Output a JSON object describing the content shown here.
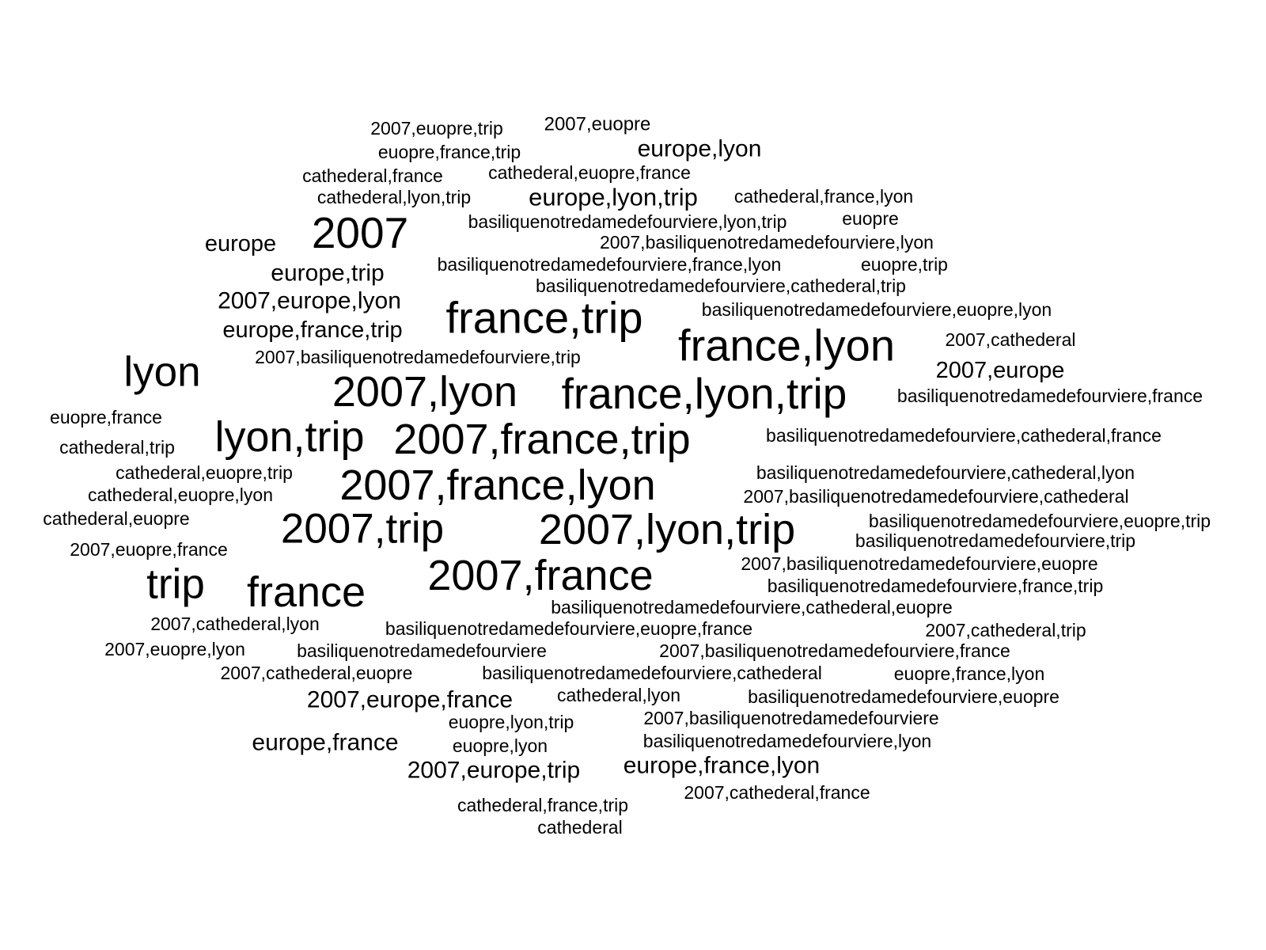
{
  "word_cloud": {
    "text_color": "#000000",
    "background_color": "#ffffff",
    "words": [
      "2007,euopre,trip",
      "2007,euopre",
      "euopre,france,trip",
      "europe,lyon",
      "cathederal,france",
      "cathederal,euopre,france",
      "cathederal,lyon,trip",
      "europe,lyon,trip",
      "cathederal,france,lyon",
      "2007",
      "basiliquenotredamedefourviere,lyon,trip",
      "euopre",
      "europe",
      "2007,basiliquenotredamedefourviere,lyon",
      "basiliquenotredamedefourviere,france,lyon",
      "euopre,trip",
      "europe,trip",
      "basiliquenotredamedefourviere,cathederal,trip",
      "2007,europe,lyon",
      "france,trip",
      "basiliquenotredamedefourviere,euopre,lyon",
      "europe,france,trip",
      "france,lyon",
      "2007,cathederal",
      "2007,basiliquenotredamedefourviere,trip",
      "lyon",
      "2007,europe",
      "2007,lyon",
      "france,lyon,trip",
      "basiliquenotredamedefourviere,france",
      "euopre,france",
      "lyon,trip",
      "2007,france,trip",
      "basiliquenotredamedefourviere,cathederal,france",
      "cathederal,trip",
      "cathederal,euopre,trip",
      "basiliquenotredamedefourviere,cathederal,lyon",
      "2007,france,lyon",
      "cathederal,euopre,lyon",
      "2007,basiliquenotredamedefourviere,cathederal",
      "cathederal,euopre",
      "2007,trip",
      "2007,lyon,trip",
      "basiliquenotredamedefourviere,euopre,trip",
      "basiliquenotredamedefourviere,trip",
      "2007,euopre,france",
      "2007,basiliquenotredamedefourviere,euopre",
      "trip",
      "france",
      "2007,france",
      "basiliquenotredamedefourviere,france,trip",
      "basiliquenotredamedefourviere,cathederal,euopre",
      "2007,cathederal,lyon",
      "basiliquenotredamedefourviere,euopre,france",
      "2007,cathederal,trip",
      "2007,euopre,lyon",
      "basiliquenotredamedefourviere",
      "2007,basiliquenotredamedefourviere,france",
      "2007,cathederal,euopre",
      "basiliquenotredamedefourviere,cathederal",
      "euopre,france,lyon",
      "2007,europe,france",
      "cathederal,lyon",
      "basiliquenotredamedefourviere,euopre",
      "euopre,lyon,trip",
      "2007,basiliquenotredamedefourviere",
      "europe,france",
      "euopre,lyon",
      "basiliquenotredamedefourviere,lyon",
      "2007,europe,trip",
      "europe,france,lyon",
      "2007,cathederal,france",
      "cathederal,france,trip",
      "cathederal"
    ]
  }
}
